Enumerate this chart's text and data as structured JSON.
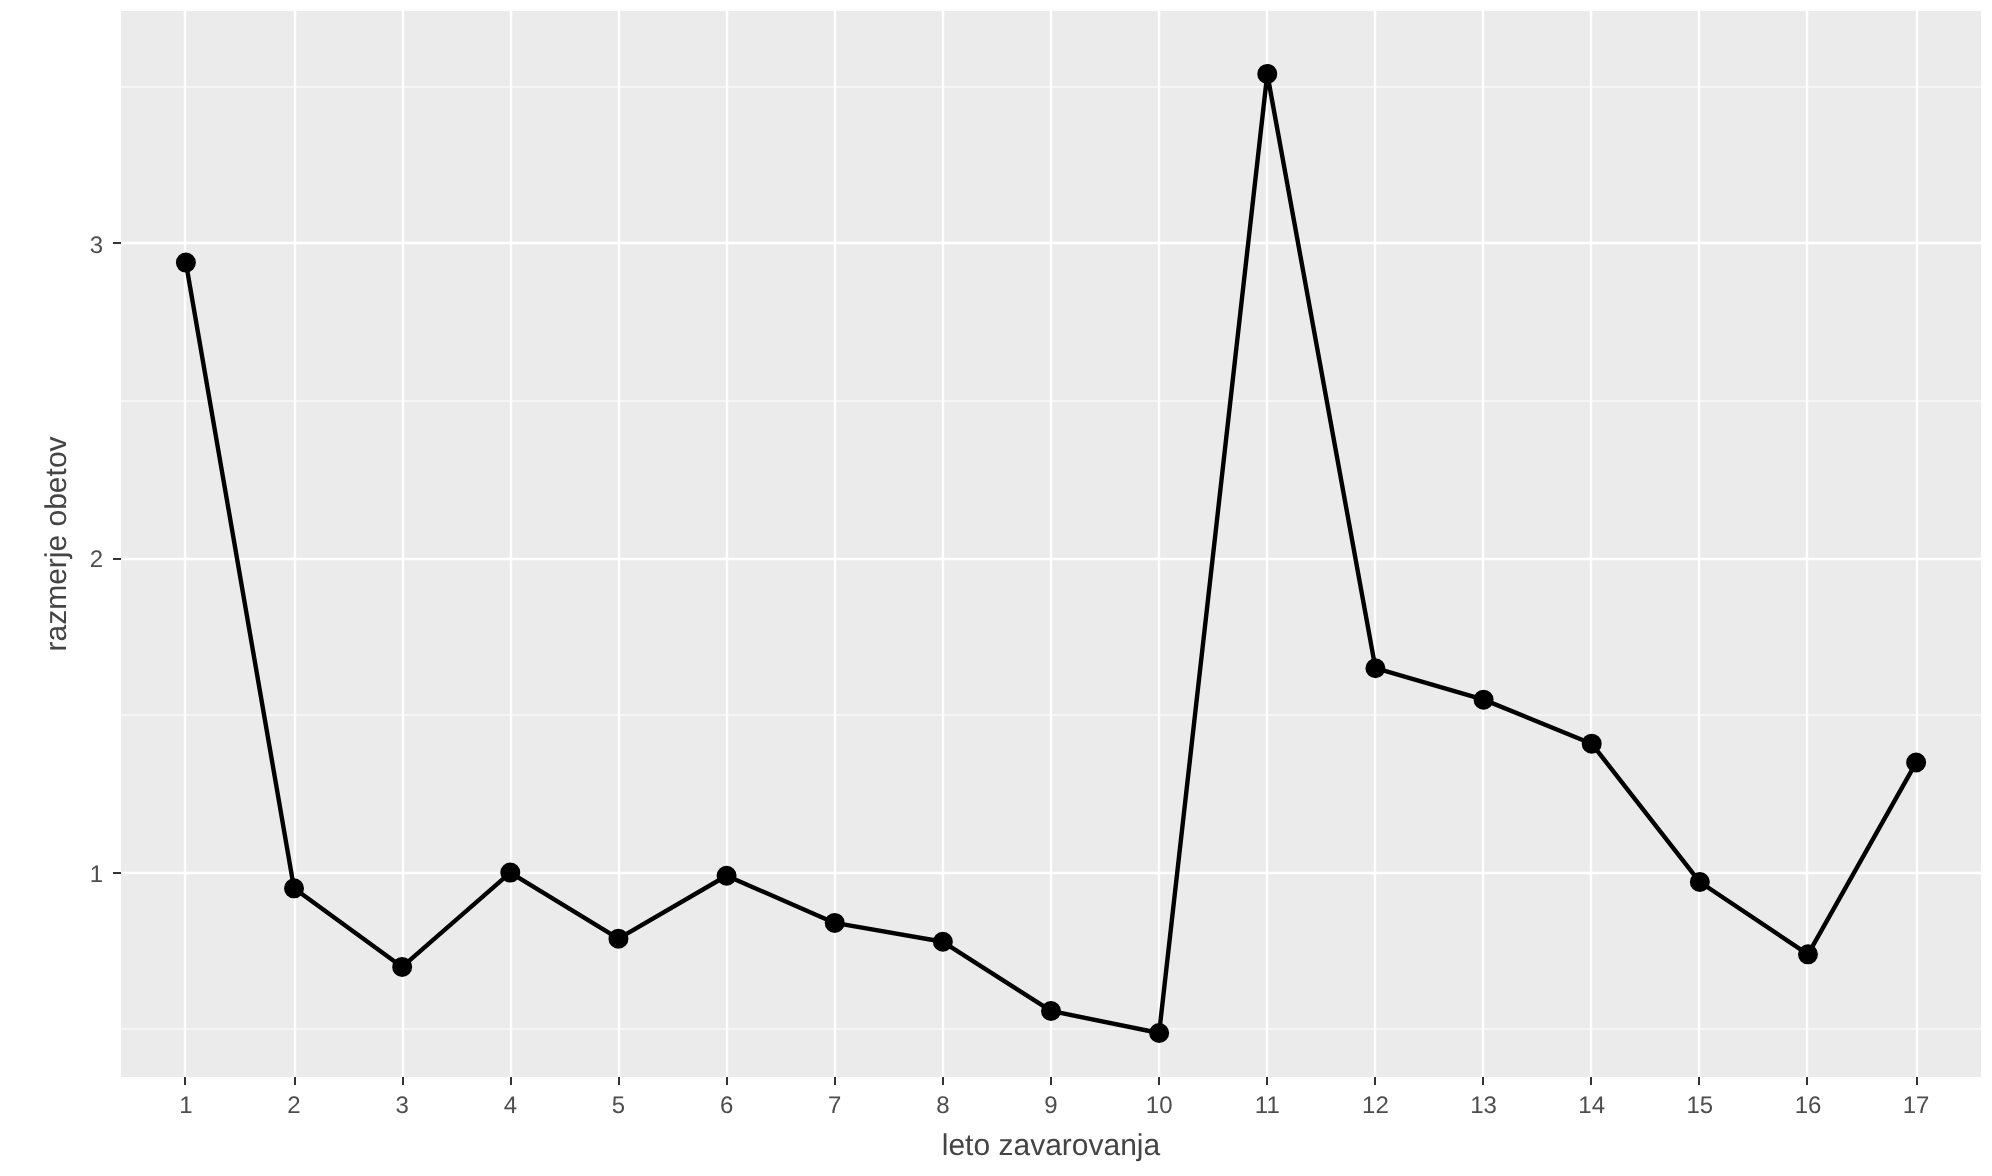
{
  "chart_data": {
    "type": "line",
    "xlabel": "leto zavarovanja",
    "ylabel": "razmerje obetov",
    "x": [
      1,
      2,
      3,
      4,
      5,
      6,
      7,
      8,
      9,
      10,
      11,
      12,
      13,
      14,
      15,
      16,
      17
    ],
    "series": [
      {
        "color": "#000000",
        "values": [
          2.94,
          0.95,
          0.7,
          1.0,
          0.79,
          0.99,
          0.84,
          0.78,
          0.56,
          0.49,
          3.54,
          1.65,
          1.55,
          1.41,
          0.97,
          0.74,
          1.35
        ]
      }
    ],
    "xlim": [
      0.4,
      17.6
    ],
    "ylim": [
      0.35,
      3.74
    ],
    "xticks": [
      1,
      2,
      3,
      4,
      5,
      6,
      7,
      8,
      9,
      10,
      11,
      12,
      13,
      14,
      15,
      16,
      17
    ],
    "yticks": [
      1,
      2,
      3
    ],
    "grid": true,
    "marker": "circle",
    "line_style": "solid"
  }
}
